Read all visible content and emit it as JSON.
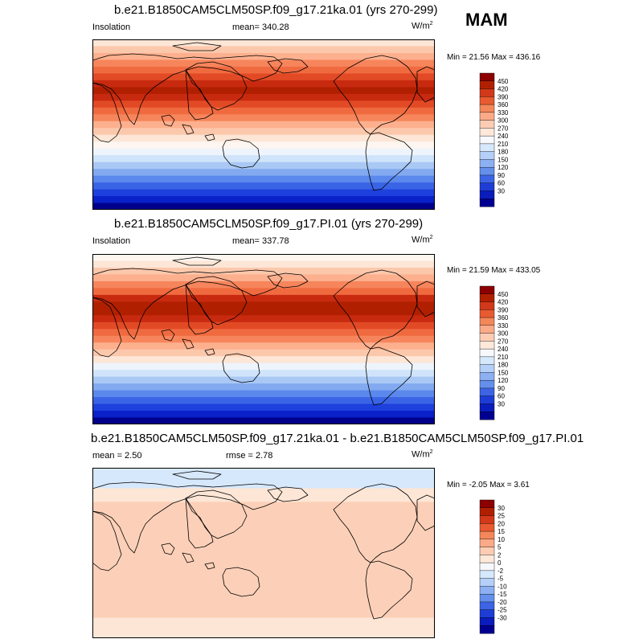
{
  "season": "MAM",
  "panels": [
    {
      "title": "b.e21.B1850CAM5CLM50SP.f09_g17.21ka.01 (yrs 270-299)",
      "left_label": "Insolation",
      "center_label": "mean= 340.28",
      "units": "W/m",
      "units_exp": "2",
      "minmax": "Min =  21.56 Max = 436.16",
      "colorbar_labels": [
        "450",
        "420",
        "390",
        "360",
        "330",
        "300",
        "270",
        "240",
        "210",
        "180",
        "150",
        "120",
        "90",
        "60",
        "30"
      ],
      "band_colors": [
        "#fde6d6",
        "#fcc8ac",
        "#fdb08e",
        "#f7855c",
        "#f06a40",
        "#e24a25",
        "#c82a10",
        "#b02000",
        "#c82a10",
        "#e24a25",
        "#f06a40",
        "#f7855c",
        "#fdb08e",
        "#fcc8ac",
        "#fde6d6",
        "#fdf6f0",
        "#eef4fc",
        "#cfe4fa",
        "#a9c8f4",
        "#83aaf0",
        "#5a88ec",
        "#3a64e6",
        "#1e40dc",
        "#0a20c8",
        "#00008c"
      ]
    },
    {
      "title": "b.e21.B1850CAM5CLM50SP.f09_g17.PI.01 (yrs 270-299)",
      "left_label": "Insolation",
      "center_label": "mean= 337.78",
      "units": "W/m",
      "units_exp": "2",
      "minmax": "Min =  21.59 Max = 433.05",
      "colorbar_labels": [
        "450",
        "420",
        "390",
        "360",
        "330",
        "300",
        "270",
        "240",
        "210",
        "180",
        "150",
        "120",
        "90",
        "60",
        "30"
      ],
      "band_colors": [
        "#fdf6f0",
        "#fde6d6",
        "#fcc8ac",
        "#fdb08e",
        "#f7855c",
        "#f06a40",
        "#c82a10",
        "#b02000",
        "#b02000",
        "#c82a10",
        "#e24a25",
        "#f06a40",
        "#f7855c",
        "#fdb08e",
        "#fcc8ac",
        "#fde6d6",
        "#eef4fc",
        "#cfe4fa",
        "#a9c8f4",
        "#83aaf0",
        "#5a88ec",
        "#3a64e6",
        "#1e40dc",
        "#0a20c8",
        "#00008c"
      ]
    },
    {
      "title": "b.e21.B1850CAM5CLM50SP.f09_g17.21ka.01 - b.e21.B1850CAM5CLM50SP.f09_g17.PI.01",
      "left_label": "mean =   2.50",
      "center_label": "rmse =   2.78",
      "units": "W/m",
      "units_exp": "2",
      "minmax": "Min =  -2.05 Max =   3.61",
      "colorbar_labels": [
        "30",
        "25",
        "20",
        "15",
        "10",
        "5",
        "2",
        "0",
        "-2",
        "-5",
        "-10",
        "-15",
        "-20",
        "-25",
        "-30"
      ],
      "band_colors": [
        "#d6e8fc",
        "#d6e8fc",
        "#d6e8fc",
        "#fde6d6",
        "#fde6d6",
        "#fcd0b8",
        "#fcd0b8",
        "#fcd0b8",
        "#fcd0b8",
        "#fcd0b8",
        "#fcd0b8",
        "#fcd0b8",
        "#fcd0b8",
        "#fcd0b8",
        "#fcd0b8",
        "#fcd0b8",
        "#fcd0b8",
        "#fcd0b8",
        "#fcd0b8",
        "#fcd0b8",
        "#fcd0b8",
        "#fcd0b8",
        "#fde6d6",
        "#fde6d6",
        "#fde6d6"
      ]
    }
  ],
  "colorbar_colors": [
    "#8c0000",
    "#b02000",
    "#d2381a",
    "#e85a30",
    "#f4875a",
    "#fbaa88",
    "#fcccb4",
    "#fde8da",
    "#f6f8fc",
    "#d6e8fc",
    "#b4d0f8",
    "#8cb0f2",
    "#6490ec",
    "#3c64e4",
    "#1e3cd6",
    "#0a1cbc",
    "#000090"
  ]
}
